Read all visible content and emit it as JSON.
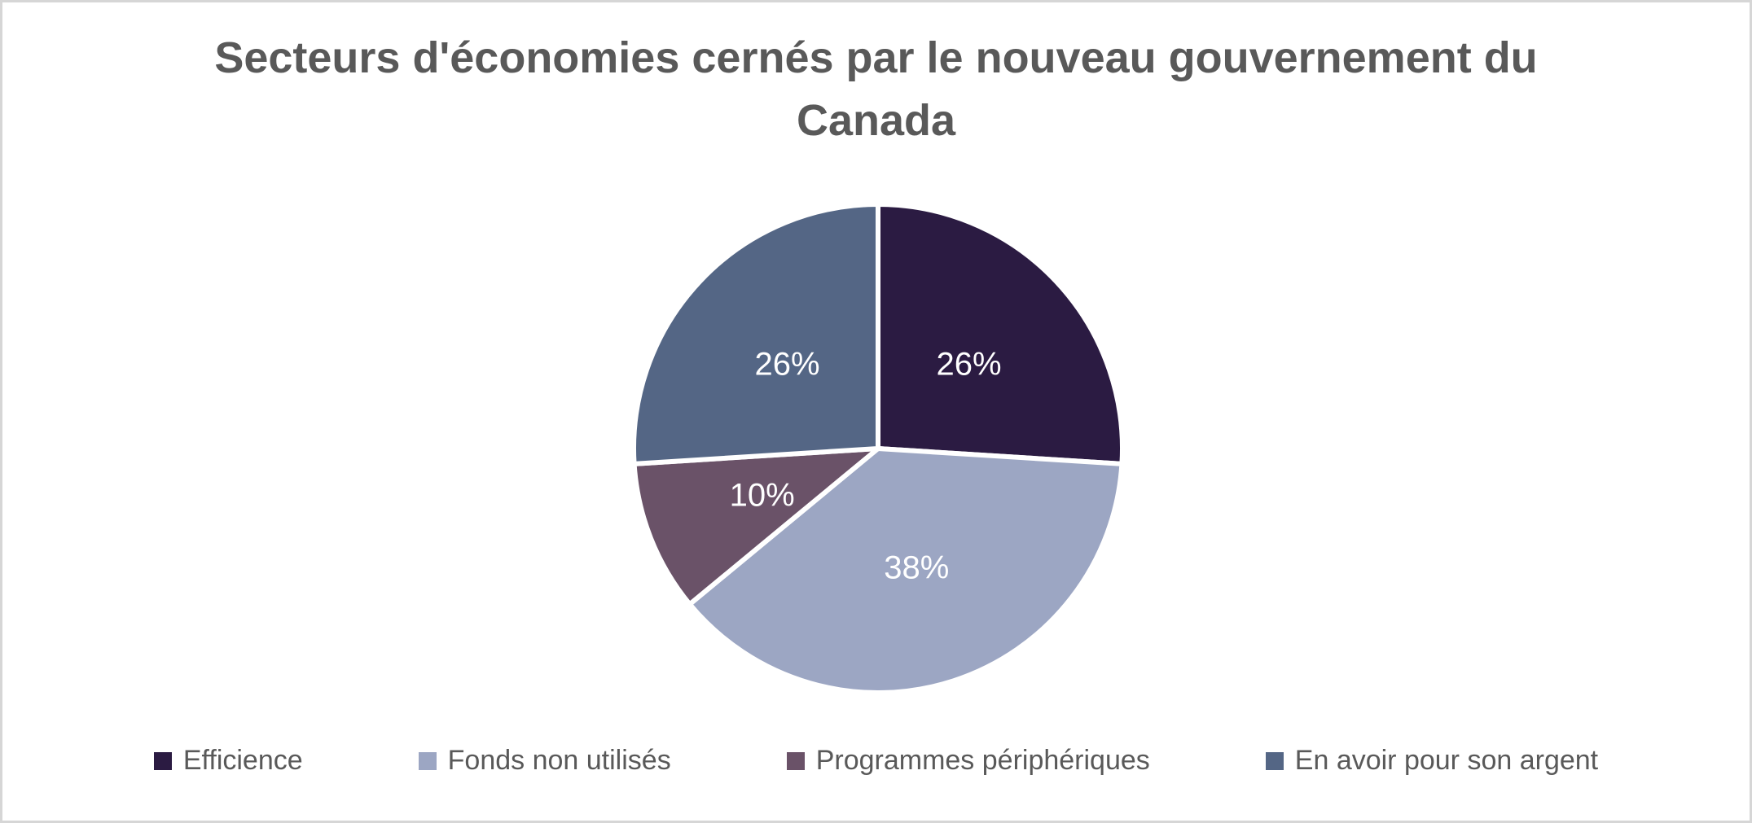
{
  "page": {
    "background_color": "#FFFFFF",
    "border_color": "#D6D6D6"
  },
  "title": {
    "line1": "Secteurs d'économies cernés par le nouveau gouvernement du",
    "line2": "Canada",
    "color": "#595959"
  },
  "chart_data": {
    "type": "pie",
    "title": "Secteurs d'économies cernés par le nouveau gouvernement du Canada",
    "start_angle_deg": 0,
    "direction": "clockwise",
    "legend_position": "bottom",
    "data_label_color": "#FFFFFF",
    "separator_color": "#FFFFFF",
    "slices": [
      {
        "label": "Efficience",
        "value": 26,
        "data_label": "26%",
        "color": "#2B1B42"
      },
      {
        "label": "Fonds non utilisés",
        "value": 38,
        "data_label": "38%",
        "color": "#9CA6C3"
      },
      {
        "label": "Programmes périphériques",
        "value": 10,
        "data_label": "10%",
        "color": "#6A5268"
      },
      {
        "label": "En avoir pour son argent",
        "value": 26,
        "data_label": "26%",
        "color": "#546685"
      }
    ]
  }
}
